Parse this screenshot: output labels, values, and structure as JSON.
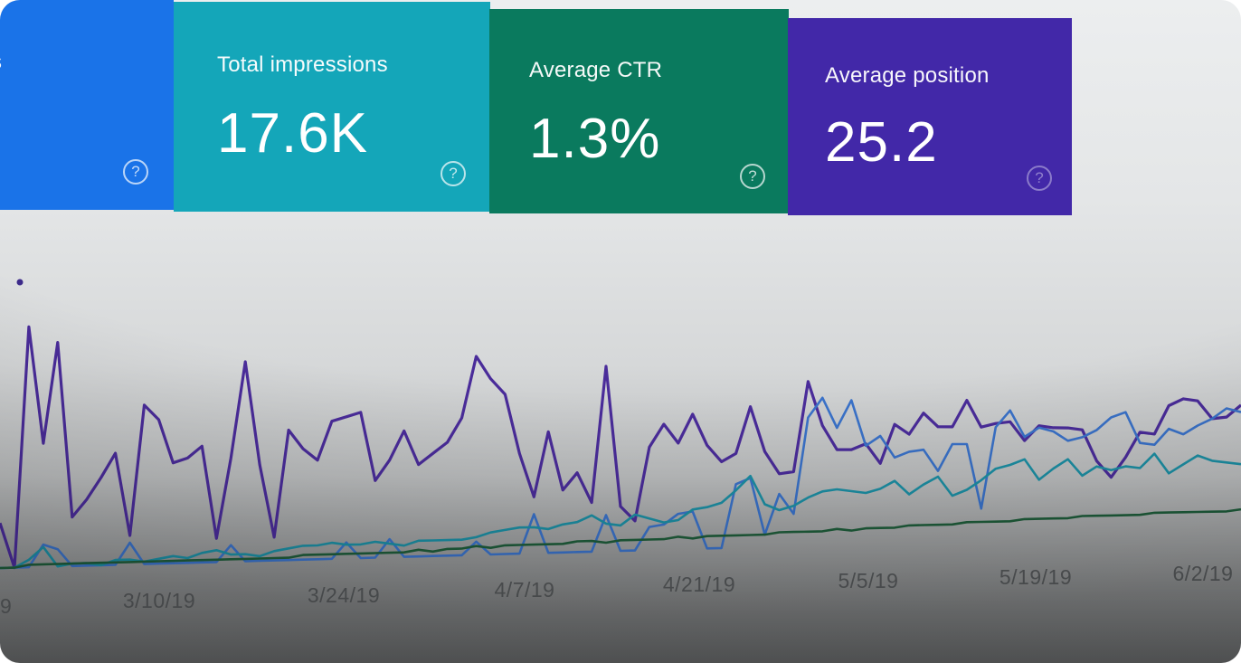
{
  "cards": [
    {
      "id": "clicks",
      "label": "s",
      "value": "",
      "color": "#1a73e8",
      "help_icon": "question-circle-icon"
    },
    {
      "id": "impressions",
      "label": "Total impressions",
      "value": "17.6K",
      "color": "#14a6b9",
      "help_icon": "question-circle-icon"
    },
    {
      "id": "ctr",
      "label": "Average CTR",
      "value": "1.3%",
      "color": "#0a7a5e",
      "help_icon": "question-circle-icon"
    },
    {
      "id": "position",
      "label": "Average position",
      "value": "25.2",
      "color": "#4228a8",
      "help_icon": "question-circle-icon"
    }
  ],
  "help_glyph": "?",
  "chart_data": {
    "type": "line",
    "x_tick_labels": [
      "9",
      "3/10/19",
      "3/24/19",
      "4/7/19",
      "4/21/19",
      "5/5/19",
      "5/19/19",
      "6/2/19"
    ],
    "series": [
      {
        "color": "#4a2c9a",
        "values": [
          0.18,
          0.0,
          0.97,
          0.5,
          0.91,
          0.2,
          0.27,
          0.36,
          0.46,
          0.12,
          0.66,
          0.6,
          0.42,
          0.44,
          0.49,
          0.1,
          0.44,
          0.85,
          0.41,
          0.1,
          0.56,
          0.48,
          0.43,
          0.6,
          0.62,
          0.64,
          0.34,
          0.43,
          0.56,
          0.41,
          0.46,
          0.51,
          0.62,
          0.9,
          0.8,
          0.73,
          0.46,
          0.26,
          0.56,
          0.29,
          0.37,
          0.23,
          0.87,
          0.21,
          0.14,
          0.49,
          0.6,
          0.51,
          0.65,
          0.5,
          0.42,
          0.46,
          0.69,
          0.47,
          0.36,
          0.37,
          0.82,
          0.6,
          0.48,
          0.48,
          0.51,
          0.41,
          0.61,
          0.56,
          0.67,
          0.6,
          0.6,
          0.74,
          0.6,
          0.62,
          0.63,
          0.53,
          0.61,
          0.6,
          0.6,
          0.59,
          0.42,
          0.33,
          0.44,
          0.58,
          0.57,
          0.73,
          0.77,
          0.76,
          0.66,
          0.67,
          0.74
        ]
      },
      {
        "color": "#3a72c9",
        "values": [
          0.0,
          0.0,
          0.0,
          0.09,
          0.07,
          0.0,
          0.0,
          0.0,
          0.0,
          0.09,
          0.0,
          0.0,
          0.0,
          0.0,
          0.0,
          0.0,
          0.07,
          0.0,
          0.0,
          0.0,
          0.0,
          0.0,
          0.0,
          0.0,
          0.07,
          0.0,
          0.0,
          0.08,
          0.0,
          0.0,
          0.0,
          0.0,
          0.0,
          0.06,
          0.0,
          0.0,
          0.0,
          0.18,
          0.0,
          0.0,
          0.0,
          0.0,
          0.17,
          0.0,
          0.0,
          0.11,
          0.12,
          0.17,
          0.18,
          0.0,
          0.0,
          0.31,
          0.34,
          0.06,
          0.26,
          0.16,
          0.64,
          0.74,
          0.59,
          0.73,
          0.5,
          0.55,
          0.44,
          0.47,
          0.48,
          0.37,
          0.51,
          0.51,
          0.17,
          0.6,
          0.69,
          0.55,
          0.6,
          0.58,
          0.53,
          0.55,
          0.59,
          0.66,
          0.69,
          0.52,
          0.51,
          0.6,
          0.57,
          0.62,
          0.66,
          0.72,
          0.7
        ]
      },
      {
        "color": "#1c8fa4",
        "values": [
          0.0,
          0.0,
          0.03,
          0.08,
          0.0,
          0.01,
          0.01,
          0.0,
          0.02,
          0.02,
          0.01,
          0.02,
          0.03,
          0.02,
          0.04,
          0.05,
          0.03,
          0.03,
          0.02,
          0.04,
          0.05,
          0.06,
          0.06,
          0.07,
          0.06,
          0.06,
          0.07,
          0.06,
          0.05,
          0.07,
          0.07,
          0.07,
          0.07,
          0.08,
          0.1,
          0.11,
          0.12,
          0.12,
          0.11,
          0.13,
          0.14,
          0.17,
          0.13,
          0.12,
          0.17,
          0.15,
          0.13,
          0.14,
          0.19,
          0.2,
          0.22,
          0.28,
          0.35,
          0.21,
          0.18,
          0.2,
          0.24,
          0.27,
          0.28,
          0.27,
          0.26,
          0.28,
          0.32,
          0.25,
          0.3,
          0.34,
          0.24,
          0.27,
          0.32,
          0.38,
          0.4,
          0.43,
          0.32,
          0.38,
          0.43,
          0.34,
          0.39,
          0.37,
          0.39,
          0.38,
          0.46,
          0.35,
          0.4,
          0.45,
          0.42,
          0.41,
          0.4
        ]
      },
      {
        "color": "#1e5c3a",
        "values": [
          0.0,
          0.0,
          0.01,
          0.01,
          0.01,
          0.01,
          0.01,
          0.01,
          0.01,
          0.01,
          0.01,
          0.01,
          0.01,
          0.01,
          0.01,
          0.01,
          0.01,
          0.01,
          0.01,
          0.01,
          0.01,
          0.02,
          0.02,
          0.02,
          0.02,
          0.02,
          0.02,
          0.02,
          0.02,
          0.03,
          0.02,
          0.03,
          0.03,
          0.04,
          0.03,
          0.04,
          0.04,
          0.04,
          0.04,
          0.04,
          0.05,
          0.05,
          0.04,
          0.05,
          0.05,
          0.05,
          0.05,
          0.06,
          0.05,
          0.06,
          0.06,
          0.06,
          0.06,
          0.06,
          0.07,
          0.07,
          0.07,
          0.07,
          0.08,
          0.07,
          0.08,
          0.08,
          0.08,
          0.09,
          0.09,
          0.09,
          0.09,
          0.1,
          0.1,
          0.1,
          0.1,
          0.11,
          0.11,
          0.11,
          0.11,
          0.12,
          0.12,
          0.12,
          0.12,
          0.12,
          0.13,
          0.13,
          0.13,
          0.13,
          0.13,
          0.13,
          0.14
        ]
      }
    ]
  }
}
